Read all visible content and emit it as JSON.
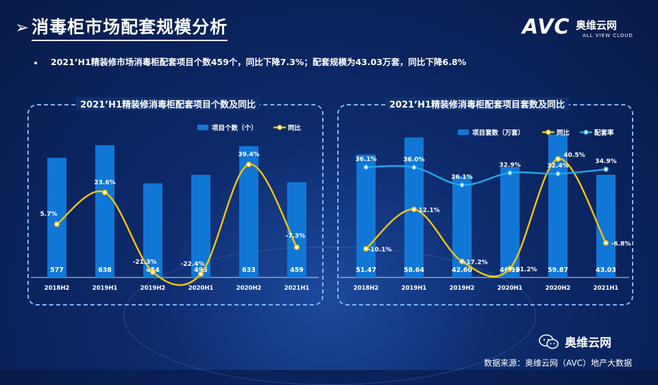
{
  "title": "消毒柜市场配套规模分析",
  "logo": {
    "mark": "AVC",
    "cn": "奥维云网",
    "en": "ALL VIEW CLOUD"
  },
  "bullet": "2021’H1精装修市场消毒柜配套项目个数459个，同比下降7.3%；配套规模为43.03万套，同比下降6.8%",
  "wechat_label": "奥维云网",
  "source": "数据来源：奥维云网（AVC）地产大数据",
  "colors": {
    "bar": "#1177d6",
    "line_yoy": "#f2c30f",
    "line_rate": "#1ea9ec"
  },
  "chart_data": [
    {
      "type": "bar+line",
      "title": "2021’H1精装修消毒柜配套项目个数及同比",
      "categories": [
        "2018H2",
        "2019H1",
        "2019H2",
        "2020H1",
        "2020H2",
        "2021H1"
      ],
      "series": [
        {
          "name": "项目个数（个）",
          "type": "bar",
          "values": [
            577,
            638,
            454,
            495,
            633,
            459
          ],
          "labels": [
            "577",
            "638",
            "454",
            "495",
            "633",
            "459"
          ]
        },
        {
          "name": "同比",
          "type": "line",
          "values": [
            5.7,
            23.6,
            -21.3,
            -22.4,
            39.4,
            -7.3
          ],
          "labels": [
            "5.7%",
            "23.6%",
            "-21.3%",
            "-22.4%",
            "39.4%",
            "-7.3%"
          ]
        }
      ],
      "legend": [
        "项目个数（个）",
        "同比"
      ]
    },
    {
      "type": "bar+line",
      "title": "2021’H1精装修消毒柜配套项目套数及同比",
      "categories": [
        "2018H2",
        "2019H1",
        "2019H2",
        "2020H1",
        "2020H2",
        "2021H1"
      ],
      "series": [
        {
          "name": "项目套数（万套）",
          "type": "bar",
          "values": [
            51.47,
            58.64,
            42.6,
            46.19,
            59.87,
            43.03
          ],
          "labels": [
            "51.47",
            "58.64",
            "42.60",
            "46.19",
            "59.87",
            "43.03"
          ]
        },
        {
          "name": "同比",
          "type": "line",
          "values": [
            -10.1,
            12.1,
            -17.2,
            -21.2,
            40.5,
            -6.8
          ],
          "labels": [
            "-10.1%",
            "12.1%",
            "-17.2%",
            "-21.2%",
            "40.5%",
            "-6.8%"
          ]
        },
        {
          "name": "配套率",
          "type": "line",
          "values": [
            36.1,
            36.0,
            26.1,
            32.9,
            32.4,
            34.9
          ],
          "labels": [
            "36.1%",
            "36.0%",
            "26.1%",
            "32.9%",
            "32.4%",
            "34.9%"
          ]
        }
      ],
      "legend": [
        "项目套数（万套）",
        "同比",
        "配套率"
      ]
    }
  ]
}
